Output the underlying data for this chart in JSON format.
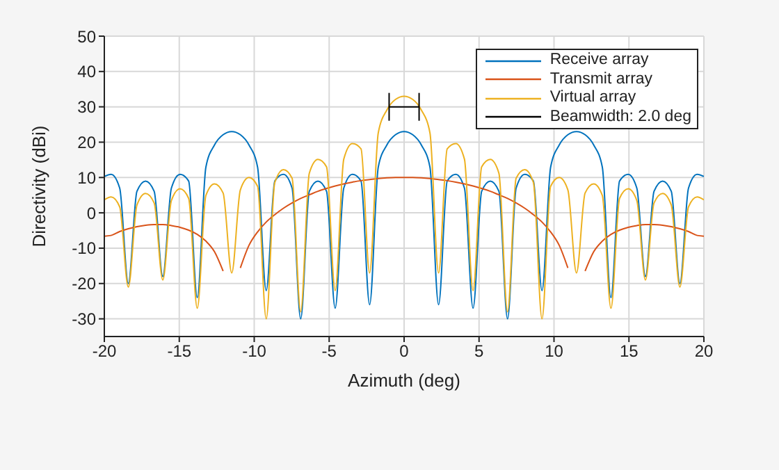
{
  "chart_data": {
    "type": "line",
    "xlabel": "Azimuth (deg)",
    "ylabel": "Directivity (dBi)",
    "xlim": [
      -20,
      20
    ],
    "ylim": [
      -35,
      50
    ],
    "xticks": [
      -20,
      -15,
      -10,
      -5,
      0,
      5,
      10,
      15,
      20
    ],
    "yticks": [
      -30,
      -20,
      -10,
      0,
      10,
      20,
      30,
      40,
      50
    ],
    "grid": true,
    "legend": "top right",
    "x": [
      -20,
      -19.55,
      -18.975,
      -18.4,
      -17.825,
      -17.25,
      -16.675,
      -16.1,
      -15.525,
      -14.95,
      -14.375,
      -13.8,
      -13.225,
      -12.65,
      -12.075,
      -11.5,
      -10.925,
      -10.35,
      -9.775,
      -9.2,
      -8.625,
      -8.05,
      -7.475,
      -6.9,
      -6.325,
      -5.75,
      -5.175,
      -4.6,
      -4.025,
      -3.45,
      -2.875,
      -2.3,
      -1.725,
      -1.15,
      -0.575,
      0,
      0.575,
      1.15,
      1.725,
      2.3,
      2.875,
      3.45,
      4.025,
      4.6,
      5.175,
      5.75,
      6.325,
      6.9,
      7.475,
      8.05,
      8.625,
      9.2,
      9.775,
      10.35,
      10.925,
      11.5,
      12.075,
      12.65,
      13.225,
      13.8,
      14.375,
      14.95,
      15.525,
      16.1,
      16.675,
      17.25,
      17.825,
      18.4,
      18.975,
      19.55,
      20
    ],
    "series": [
      {
        "name": "Receive array",
        "color": "#0072bd",
        "values": [
          10.3,
          10.9,
          7.0,
          -20,
          6.1,
          9.0,
          6.1,
          -18,
          7.0,
          10.9,
          9.0,
          -24,
          12.9,
          19.2,
          22.1,
          23,
          22.1,
          19.2,
          12.9,
          -22,
          9.0,
          10.9,
          7.0,
          -30,
          6.1,
          9.0,
          6.1,
          -27,
          7.0,
          10.9,
          9.0,
          -26,
          12.9,
          19.2,
          22.1,
          23,
          22.1,
          19.2,
          12.9,
          -26,
          9.0,
          10.9,
          7.0,
          -27,
          6.1,
          9.0,
          6.1,
          -30,
          7.0,
          10.9,
          9.0,
          -22,
          12.9,
          19.2,
          22.1,
          23,
          22.1,
          19.2,
          12.9,
          -24,
          9.0,
          10.9,
          7.0,
          -18,
          6.1,
          9.0,
          6.1,
          -20,
          7.0,
          10.9,
          10.3
        ]
      },
      {
        "name": "Transmit array",
        "color": "#d95319",
        "values": [
          -6.6,
          -6.4,
          -5.3,
          -4.5,
          -3.9,
          -3.5,
          -3.3,
          -3.3,
          -3.6,
          -4.1,
          -4.9,
          -6.1,
          -8.0,
          -11.0,
          -16.5,
          null,
          -15.6,
          -9.2,
          -5.4,
          -2.6,
          -0.5,
          1.3,
          2.8,
          4.1,
          5.1,
          6.1,
          6.9,
          7.6,
          8.2,
          8.7,
          9.1,
          9.4,
          9.7,
          9.9,
          10.0,
          10,
          10.0,
          9.9,
          9.7,
          9.4,
          9.1,
          8.7,
          8.2,
          7.6,
          6.9,
          6.1,
          5.1,
          4.1,
          2.8,
          1.3,
          -0.5,
          -2.6,
          -5.4,
          -9.2,
          -15.6,
          null,
          -16.5,
          -11.0,
          -8.0,
          -6.1,
          -4.9,
          -4.1,
          -3.6,
          -3.3,
          -3.3,
          -3.5,
          -3.9,
          -4.5,
          -5.3,
          -6.4,
          -6.6
        ]
      },
      {
        "name": "Virtual array",
        "color": "#edb120",
        "values": [
          3.7,
          4.5,
          1.7,
          -21,
          2.2,
          5.5,
          2.8,
          -19,
          3.5,
          6.8,
          4.1,
          -27,
          4.9,
          8.2,
          5.6,
          -17,
          6.5,
          10.0,
          7.5,
          -30,
          8.6,
          12.2,
          9.8,
          -28,
          11.2,
          15.1,
          13.0,
          -22,
          15.2,
          19.6,
          18.1,
          -17,
          22.6,
          29.1,
          32.1,
          33,
          32.1,
          29.1,
          22.6,
          -17,
          18.1,
          19.6,
          15.2,
          -22,
          13.0,
          15.1,
          11.2,
          -28,
          9.8,
          12.2,
          8.6,
          -30,
          7.5,
          10.0,
          6.5,
          -17,
          5.6,
          8.2,
          4.9,
          -27,
          4.1,
          6.8,
          3.5,
          -19,
          2.8,
          5.5,
          2.2,
          -21,
          1.7,
          4.5,
          3.7
        ]
      },
      {
        "name": "Beamwidth: 2.0 deg",
        "color": "#000000",
        "x": [
          -1,
          1
        ],
        "values": [
          30,
          30
        ]
      }
    ]
  }
}
